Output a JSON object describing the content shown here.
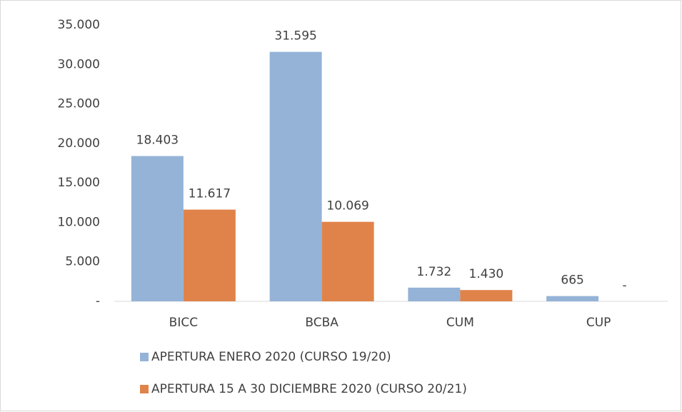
{
  "chart_data": {
    "type": "bar",
    "categories": [
      "BICC",
      "BCBA",
      "CUM",
      "CUP"
    ],
    "series": [
      {
        "name": "APERTURA ENERO 2020 (CURSO 19/20)",
        "color": "#95b3d7",
        "values": [
          18403,
          31595,
          1732,
          665
        ],
        "value_labels": [
          "18.403",
          "31.595",
          "1.732",
          "665"
        ]
      },
      {
        "name": "APERTURA 15 A 30 DICIEMBRE 2020 (CURSO 20/21)",
        "color": "#e0834a",
        "values": [
          11617,
          10069,
          1430,
          0
        ],
        "value_labels": [
          "11.617",
          "10.069",
          "1.430",
          "-"
        ]
      }
    ],
    "ylim": [
      0,
      35000
    ],
    "yticks": [
      {
        "value": 0,
        "label": "-"
      },
      {
        "value": 5000,
        "label": "5.000"
      },
      {
        "value": 10000,
        "label": "10.000"
      },
      {
        "value": 15000,
        "label": "15.000"
      },
      {
        "value": 20000,
        "label": "20.000"
      },
      {
        "value": 25000,
        "label": "25.000"
      },
      {
        "value": 30000,
        "label": "30.000"
      },
      {
        "value": 35000,
        "label": "35.000"
      }
    ],
    "grid": false,
    "legend": "bottom"
  }
}
